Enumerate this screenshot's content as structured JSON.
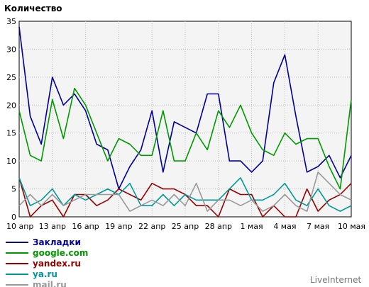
{
  "chart_data": {
    "type": "line",
    "ylabel": "Количество",
    "ylim": [
      0,
      35
    ],
    "yticks": [
      0,
      5,
      10,
      15,
      20,
      25,
      30,
      35
    ],
    "n_points": 31,
    "xtick_labels": [
      {
        "index": 0,
        "label": "10 апр"
      },
      {
        "index": 3,
        "label": "13 апр"
      },
      {
        "index": 6,
        "label": "16 апр"
      },
      {
        "index": 9,
        "label": "19 апр"
      },
      {
        "index": 12,
        "label": "22 апр"
      },
      {
        "index": 15,
        "label": "25 апр"
      },
      {
        "index": 18,
        "label": "28 апр"
      },
      {
        "index": 21,
        "label": "1 мая"
      },
      {
        "index": 24,
        "label": "4 мая"
      },
      {
        "index": 27,
        "label": "7 мая"
      },
      {
        "index": 30,
        "label": "10 мая"
      }
    ],
    "grid": true,
    "legend_position": "bottom-left",
    "series": [
      {
        "name": "Закладки",
        "color": "#000099",
        "values": [
          34,
          18,
          13,
          25,
          20,
          22,
          19,
          13,
          12,
          5,
          9,
          12,
          19,
          8,
          17,
          16,
          15,
          22,
          22,
          10,
          10,
          8,
          10,
          24,
          29,
          18,
          8,
          9,
          11,
          7,
          11
        ]
      },
      {
        "name": "google.com",
        "color": "#009900",
        "values": [
          19,
          11,
          10,
          21,
          14,
          23,
          20,
          15,
          10,
          14,
          13,
          11,
          11,
          19,
          10,
          10,
          15,
          12,
          19,
          16,
          20,
          15,
          12,
          11,
          15,
          13,
          14,
          14,
          9,
          5,
          21
        ]
      },
      {
        "name": "yandex.ru",
        "color": "#990000",
        "values": [
          7,
          0,
          2,
          3,
          0,
          4,
          4,
          2,
          3,
          5,
          4,
          3,
          6,
          5,
          5,
          4,
          2,
          2,
          0,
          5,
          4,
          4,
          0,
          2,
          0,
          0,
          5,
          1,
          3,
          4,
          6
        ]
      },
      {
        "name": "ya.ru",
        "color": "#009999",
        "values": [
          7,
          2,
          3,
          5,
          2,
          4,
          3,
          4,
          5,
          4,
          6,
          2,
          2,
          4,
          2,
          4,
          3,
          3,
          3,
          5,
          7,
          3,
          3,
          4,
          6,
          3,
          2,
          5,
          2,
          1,
          2
        ]
      },
      {
        "name": "mail.ru",
        "color": "#999999",
        "values": [
          2,
          4,
          2,
          4,
          2,
          3,
          4,
          4,
          4,
          4,
          1,
          2,
          3,
          2,
          4,
          2,
          6,
          1,
          3,
          3,
          2,
          3,
          1,
          2,
          4,
          2,
          1,
          8,
          6,
          4,
          3
        ]
      }
    ]
  },
  "watermark": "LiveInternet"
}
